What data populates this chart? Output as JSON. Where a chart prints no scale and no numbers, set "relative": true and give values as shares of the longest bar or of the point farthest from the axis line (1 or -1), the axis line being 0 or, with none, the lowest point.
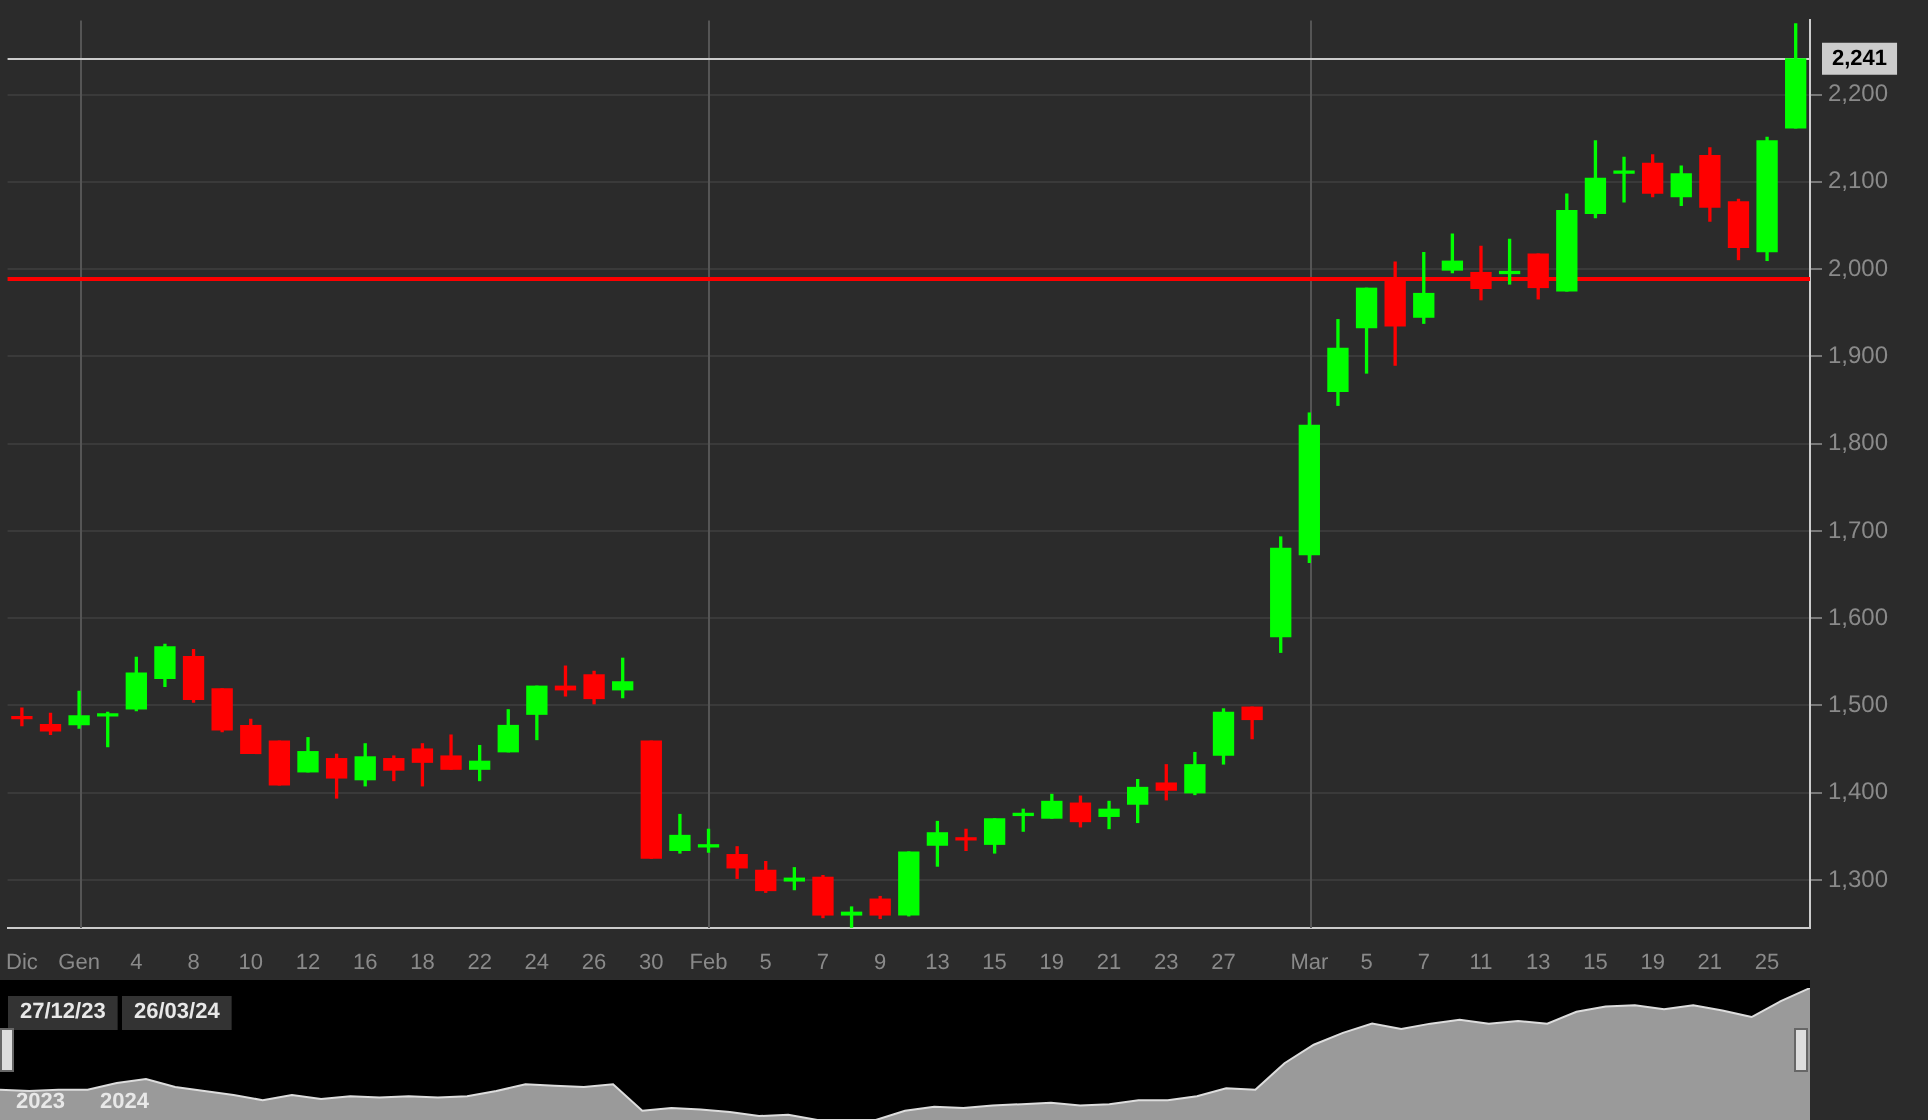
{
  "chart_data": [
    {
      "type": "candlestick",
      "categories": [
        "Dic",
        null,
        "Gen",
        null,
        "4",
        null,
        "8",
        null,
        "10",
        null,
        "12",
        null,
        "16",
        null,
        "18",
        null,
        "22",
        null,
        "24",
        null,
        "26",
        null,
        "30",
        null,
        "Feb",
        null,
        "5",
        null,
        "7",
        null,
        "9",
        null,
        "13",
        null,
        "15",
        null,
        "19",
        null,
        "21",
        null,
        "23",
        null,
        "27",
        null,
        null,
        "Mar",
        null,
        "5",
        null,
        "7",
        null,
        "11",
        null,
        "13",
        null,
        "15",
        null,
        "19",
        null,
        "21",
        null,
        "25",
        null
      ],
      "ohlc": [
        [
          1486,
          1497,
          1477,
          1485
        ],
        [
          1478,
          1491,
          1467,
          1471
        ],
        [
          1478,
          1516,
          1474,
          1488
        ],
        [
          1488,
          1492,
          1453,
          1489
        ],
        [
          1496,
          1555,
          1494,
          1537
        ],
        [
          1531,
          1570,
          1522,
          1567
        ],
        [
          1556,
          1564,
          1504,
          1507
        ],
        [
          1519,
          1519,
          1470,
          1472
        ],
        [
          1477,
          1484,
          1445,
          1445
        ],
        [
          1459,
          1459,
          1409,
          1409
        ],
        [
          1424,
          1463,
          1424,
          1447
        ],
        [
          1439,
          1444,
          1394,
          1417
        ],
        [
          1415,
          1456,
          1408,
          1441
        ],
        [
          1439,
          1442,
          1414,
          1426
        ],
        [
          1450,
          1456,
          1408,
          1435
        ],
        [
          1442,
          1466,
          1427,
          1427
        ],
        [
          1427,
          1454,
          1414,
          1436
        ],
        [
          1447,
          1495,
          1447,
          1477
        ],
        [
          1490,
          1522,
          1461,
          1522
        ],
        [
          1522,
          1545,
          1511,
          1518
        ],
        [
          1535,
          1539,
          1502,
          1508
        ],
        [
          1518,
          1554,
          1509,
          1527
        ],
        [
          1459,
          1459,
          1325,
          1325
        ],
        [
          1334,
          1375,
          1331,
          1351
        ],
        [
          1338,
          1358,
          1332,
          1340
        ],
        [
          1329,
          1338,
          1302,
          1314
        ],
        [
          1311,
          1321,
          1286,
          1288
        ],
        [
          1299,
          1314,
          1289,
          1302
        ],
        [
          1303,
          1305,
          1257,
          1260
        ],
        [
          1260,
          1269,
          1246,
          1263
        ],
        [
          1278,
          1281,
          1256,
          1260
        ],
        [
          1260,
          1332,
          1259,
          1332
        ],
        [
          1340,
          1367,
          1316,
          1354
        ],
        [
          1348,
          1358,
          1334,
          1346
        ],
        [
          1341,
          1370,
          1331,
          1370
        ],
        [
          1374,
          1381,
          1356,
          1376
        ],
        [
          1371,
          1398,
          1371,
          1390
        ],
        [
          1388,
          1396,
          1361,
          1367
        ],
        [
          1373,
          1390,
          1359,
          1381
        ],
        [
          1387,
          1415,
          1366,
          1406
        ],
        [
          1411,
          1432,
          1392,
          1403
        ],
        [
          1400,
          1446,
          1398,
          1432
        ],
        [
          1443,
          1496,
          1433,
          1492
        ],
        [
          1498,
          1498,
          1462,
          1484
        ],
        [
          1579,
          1693,
          1561,
          1680
        ],
        [
          1673,
          1835,
          1664,
          1821
        ],
        [
          1860,
          1942,
          1844,
          1909
        ],
        [
          1933,
          1978,
          1881,
          1978
        ],
        [
          1987,
          2008,
          1890,
          1935
        ],
        [
          1945,
          2019,
          1938,
          1972
        ],
        [
          1999,
          2040,
          1996,
          2009
        ],
        [
          1996,
          2026,
          1965,
          1978
        ],
        [
          1995,
          2034,
          1983,
          1997
        ],
        [
          2017,
          2017,
          1966,
          1979
        ],
        [
          1975,
          2086,
          1975,
          2067
        ],
        [
          2064,
          2147,
          2059,
          2104
        ],
        [
          2110,
          2128,
          2077,
          2112
        ],
        [
          2121,
          2131,
          2083,
          2087
        ],
        [
          2083,
          2118,
          2073,
          2109
        ],
        [
          2130,
          2139,
          2055,
          2071
        ],
        [
          2077,
          2080,
          2011,
          2025
        ],
        [
          2020,
          2151,
          2010,
          2147
        ],
        [
          2162,
          2281,
          2162,
          2241
        ]
      ],
      "colors": [
        "#ff0000",
        "#ff0000",
        "#00ff00",
        "#00ff00",
        "#00ff00",
        "#00ff00",
        "#ff0000",
        "#ff0000",
        "#ff0000",
        "#ff0000",
        "#00ff00",
        "#ff0000",
        "#00ff00",
        "#ff0000",
        "#ff0000",
        "#ff0000",
        "#00ff00",
        "#00ff00",
        "#00ff00",
        "#ff0000",
        "#ff0000",
        "#00ff00",
        "#ff0000",
        "#00ff00",
        "#00ff00",
        "#ff0000",
        "#ff0000",
        "#00ff00",
        "#ff0000",
        "#00ff00",
        "#ff0000",
        "#00ff00",
        "#00ff00",
        "#ff0000",
        "#00ff00",
        "#00ff00",
        "#00ff00",
        "#ff0000",
        "#00ff00",
        "#00ff00",
        "#ff0000",
        "#00ff00",
        "#00ff00",
        "#ff0000",
        "#00ff00",
        "#00ff00",
        "#00ff00",
        "#00ff00",
        "#ff0000",
        "#00ff00",
        "#00ff00",
        "#ff0000",
        "#00ff00",
        "#ff0000",
        "#00ff00",
        "#00ff00",
        "#00ff00",
        "#ff0000",
        "#00ff00",
        "#ff0000",
        "#ff0000",
        "#00ff00",
        "#00ff00"
      ],
      "ylim": [
        1245,
        2285
      ],
      "yticks": [
        {
          "value": 1300,
          "label": "1,300"
        },
        {
          "value": 1400,
          "label": "1,400"
        },
        {
          "value": 1500,
          "label": "1,500"
        },
        {
          "value": 1600,
          "label": "1,600"
        },
        {
          "value": 1700,
          "label": "1,700"
        },
        {
          "value": 1800,
          "label": "1,800"
        },
        {
          "value": 1900,
          "label": "1,900"
        },
        {
          "value": 2000,
          "label": "2,000"
        },
        {
          "value": 2100,
          "label": "2,100"
        },
        {
          "value": 2200,
          "label": "2,200"
        }
      ],
      "grid": "y",
      "ref_lines": [
        {
          "axis": "x",
          "value": "Gen",
          "color": "#555555"
        },
        {
          "axis": "x",
          "value": "Feb",
          "color": "#555555"
        },
        {
          "axis": "x",
          "value": "Mar",
          "color": "#555555"
        },
        {
          "axis": "y",
          "value": 1990,
          "color": "#ff0000"
        },
        {
          "axis": "y",
          "value": 2241,
          "label": "2,241",
          "color": "#cccccc"
        }
      ]
    },
    {
      "type": "area",
      "relative": true,
      "categories": [
        null,
        null,
        null,
        null,
        null,
        null,
        null,
        null,
        null,
        null,
        null,
        null,
        null,
        null,
        null,
        null,
        null,
        null,
        null,
        null,
        null,
        null,
        null,
        null,
        null,
        null,
        null,
        null,
        null,
        null,
        null,
        null,
        null,
        null,
        null,
        null,
        null,
        null,
        null,
        null,
        null,
        null,
        null,
        null,
        null,
        null,
        null,
        null,
        null,
        null,
        null,
        null,
        null,
        null,
        null,
        null,
        null,
        null,
        null,
        null,
        null,
        null,
        null
      ],
      "series": [
        {
          "color": "#9a9a9a",
          "values": [
            0.23,
            0.22,
            0.23,
            0.23,
            0.28,
            0.31,
            0.25,
            0.22,
            0.19,
            0.15,
            0.19,
            0.16,
            0.18,
            0.17,
            0.18,
            0.17,
            0.18,
            0.22,
            0.27,
            0.26,
            0.25,
            0.27,
            0.07,
            0.09,
            0.08,
            0.06,
            0.03,
            0.04,
            0,
            0,
            0,
            0.07,
            0.1,
            0.09,
            0.11,
            0.12,
            0.13,
            0.11,
            0.12,
            0.15,
            0.15,
            0.18,
            0.24,
            0.23,
            0.43,
            0.57,
            0.66,
            0.73,
            0.69,
            0.73,
            0.76,
            0.73,
            0.75,
            0.73,
            0.82,
            0.86,
            0.87,
            0.84,
            0.87,
            0.83,
            0.78,
            0.9,
            1
          ]
        }
      ],
      "annotations": [
        "27/12/23",
        "26/03/24",
        "2023",
        "2024"
      ]
    }
  ]
}
